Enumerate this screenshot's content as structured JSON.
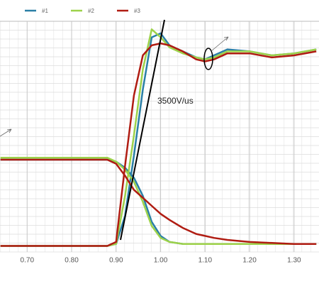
{
  "chart_data": {
    "type": "line",
    "annotation": "3500V/us",
    "x": [
      0.64,
      0.7,
      0.8,
      0.88,
      0.9,
      0.92,
      0.94,
      0.96,
      0.98,
      1.0,
      1.02,
      1.05,
      1.08,
      1.1,
      1.12,
      1.15,
      1.2,
      1.25,
      1.3,
      1.35
    ],
    "series": [
      {
        "name": "#1",
        "color": "#2a7fa6",
        "values": [
          0,
          0,
          0,
          0,
          1,
          15,
          45,
          78,
          104,
          106,
          100,
          97,
          94,
          93,
          95,
          98,
          97,
          95,
          96,
          98
        ],
        "values2": [
          43,
          43,
          43,
          43,
          42,
          39,
          34,
          25,
          12,
          5,
          2,
          1,
          1,
          1,
          1,
          1,
          1,
          1,
          1,
          1
        ]
      },
      {
        "name": "#2",
        "color": "#9dd24a",
        "values": [
          0,
          0,
          0,
          0,
          1,
          25,
          55,
          88,
          108,
          104,
          99,
          96,
          94,
          93,
          94,
          97,
          97,
          95,
          96,
          98
        ],
        "values2": [
          44,
          44,
          44,
          44,
          42,
          38,
          32,
          22,
          10,
          4,
          2,
          1,
          1,
          1,
          1,
          1,
          1,
          1,
          1,
          1
        ]
      },
      {
        "name": "#3",
        "color": "#b01c12",
        "values": [
          0,
          0,
          0,
          0,
          2,
          40,
          75,
          95,
          100,
          101,
          100,
          97,
          93,
          92,
          93,
          96,
          96,
          94,
          95,
          97
        ],
        "values2": [
          43,
          43,
          43,
          43,
          41,
          35,
          28,
          24,
          20,
          16,
          13,
          9,
          6,
          5,
          4,
          3,
          2,
          1.5,
          1,
          1
        ]
      }
    ],
    "xlim": [
      0.639,
      1.356
    ],
    "xticks": [
      {
        "value": 0.7,
        "label": "0.70"
      },
      {
        "value": 0.8,
        "label": "0.80"
      },
      {
        "value": 0.9,
        "label": "0.90"
      },
      {
        "value": 1.0,
        "label": "1.00"
      },
      {
        "value": 1.1,
        "label": "1.10"
      },
      {
        "value": 1.2,
        "label": "1.20"
      },
      {
        "value": 1.3,
        "label": "1.30"
      }
    ],
    "ylim": [
      -3,
      112
    ],
    "grid": true
  }
}
